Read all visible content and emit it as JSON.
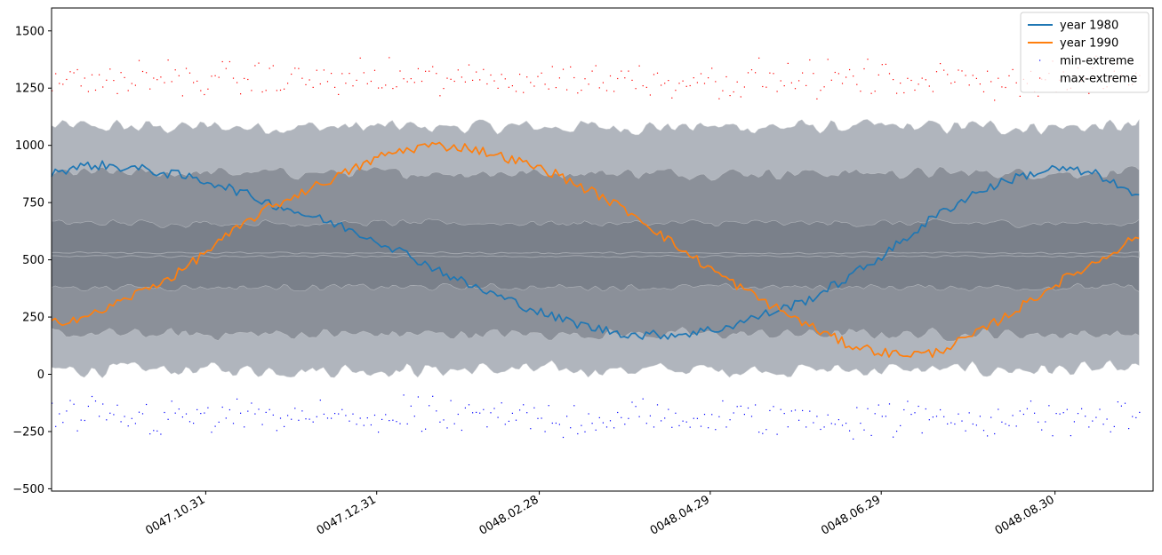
{
  "chart_data": {
    "type": "line",
    "title": "",
    "xlabel": "",
    "ylabel": "",
    "ylim": [
      -510,
      1600
    ],
    "xlim": [
      "0047.09.06",
      "0048.10.04"
    ],
    "yticks": [
      -500,
      -250,
      0,
      250,
      500,
      750,
      1000,
      1250,
      1500
    ],
    "xticks": [
      "0047.10.31",
      "0047.12.31",
      "0048.02.28",
      "0048.04.29",
      "0048.06.29",
      "0048.08.30"
    ],
    "x_start": "0047.09.06",
    "x_end": "0048.09.29",
    "grid": false,
    "legend_position": "top-right",
    "colors": {
      "year_1980": "#1f77b4",
      "year_1990": "#ff7f0e",
      "min_extreme": "#0000ff",
      "max_extreme": "#ff0000",
      "band_outer": "#b0b5bd",
      "band_middle": "#8b9099",
      "band_inner": "#7a808a",
      "median": "#a3a7ae"
    },
    "bands": [
      {
        "name": "outer",
        "upper": 1080,
        "lower": 20
      },
      {
        "name": "middle",
        "upper": 880,
        "lower": 175
      },
      {
        "name": "inner",
        "upper": 660,
        "lower": 380
      },
      {
        "name": "median",
        "upper": 530,
        "lower": 515
      }
    ],
    "series": [
      {
        "name": "year 1980",
        "x": [
          "0047.09.06",
          "0047.09.21",
          "0047.10.06",
          "0047.10.21",
          "0047.11.05",
          "0047.11.20",
          "0047.12.05",
          "0047.12.20",
          "0048.01.04",
          "0048.01.19",
          "0048.02.03",
          "0048.02.18",
          "0048.03.04",
          "0048.03.19",
          "0048.04.03",
          "0048.04.18",
          "0048.05.03",
          "0048.05.18",
          "0048.06.02",
          "0048.06.17",
          "0048.07.02",
          "0048.07.17",
          "0048.08.01",
          "0048.08.16",
          "0048.08.31",
          "0048.09.15",
          "0048.09.29"
        ],
        "values": [
          885,
          915,
          900,
          870,
          830,
          760,
          700,
          640,
          570,
          480,
          390,
          320,
          250,
          200,
          170,
          175,
          200,
          260,
          320,
          420,
          540,
          680,
          790,
          860,
          900,
          870,
          765
        ]
      },
      {
        "name": "year 1990",
        "x": [
          "0047.09.06",
          "0047.09.21",
          "0047.10.06",
          "0047.10.21",
          "0047.11.05",
          "0047.11.20",
          "0047.12.05",
          "0047.12.20",
          "0048.01.04",
          "0048.01.19",
          "0048.02.03",
          "0048.02.18",
          "0048.03.04",
          "0048.03.19",
          "0048.04.03",
          "0048.04.18",
          "0048.05.03",
          "0048.05.18",
          "0048.06.02",
          "0048.06.17",
          "0048.07.02",
          "0048.07.17",
          "0048.08.01",
          "0048.08.16",
          "0048.08.31",
          "0048.09.15",
          "0048.09.29"
        ],
        "values": [
          225,
          260,
          350,
          440,
          580,
          710,
          800,
          880,
          960,
          1000,
          990,
          940,
          880,
          790,
          690,
          550,
          430,
          320,
          220,
          130,
          90,
          90,
          170,
          280,
          400,
          500,
          610
        ]
      }
    ],
    "scatter_series": [
      {
        "name": "min-extreme",
        "center": -190,
        "spread": 120
      },
      {
        "name": "max-extreme",
        "center": 1290,
        "spread": 110
      }
    ]
  },
  "legend": {
    "items": [
      {
        "label": "year 1980",
        "kind": "line",
        "color": "#1f77b4"
      },
      {
        "label": "year 1990",
        "kind": "line",
        "color": "#ff7f0e"
      },
      {
        "label": "min-extreme",
        "kind": "dot",
        "color": "#0000ff"
      },
      {
        "label": "max-extreme",
        "kind": "dot",
        "color": "#ff0000"
      }
    ]
  }
}
